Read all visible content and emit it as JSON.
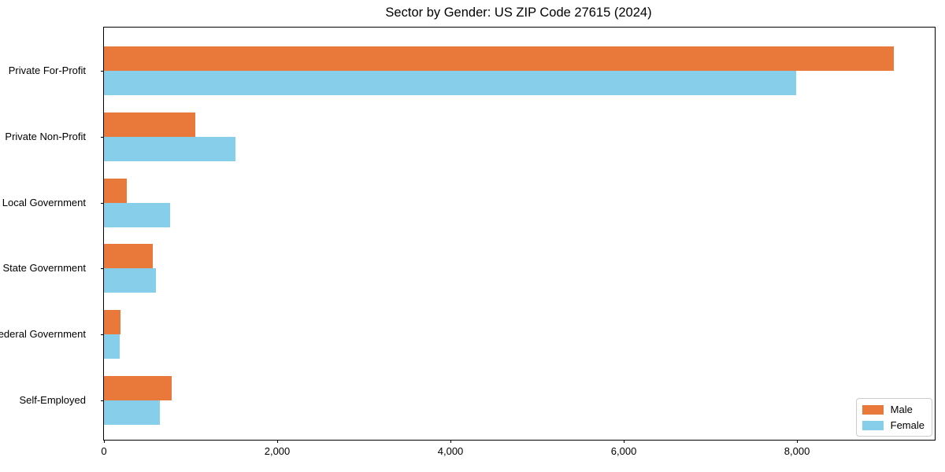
{
  "title": "Sector by Gender: US ZIP Code 27615 (2024)",
  "chart_data": {
    "type": "bar",
    "orientation": "horizontal",
    "title": "Sector by Gender: US ZIP Code 27615 (2024)",
    "categories": [
      "Private For-Profit",
      "Private Non-Profit",
      "Local Government",
      "State Government",
      "Federal Government",
      "Self-Employed"
    ],
    "series": [
      {
        "name": "Male",
        "color": "#e8793b",
        "values": [
          9120,
          1050,
          265,
          560,
          190,
          780
        ]
      },
      {
        "name": "Female",
        "color": "#87ceeb",
        "values": [
          7990,
          1520,
          765,
          600,
          180,
          645
        ]
      }
    ],
    "xlabel": "",
    "ylabel": "",
    "xlim": [
      0,
      9590
    ],
    "xticks": [
      0,
      2000,
      4000,
      6000,
      8000
    ],
    "xtick_labels": [
      "0",
      "2,000",
      "4,000",
      "6,000",
      "8,000"
    ],
    "grid": false,
    "legend_position": "lower right"
  },
  "legend": {
    "items": [
      {
        "label": "Male",
        "color": "#e8793b"
      },
      {
        "label": "Female",
        "color": "#87ceeb"
      }
    ]
  }
}
